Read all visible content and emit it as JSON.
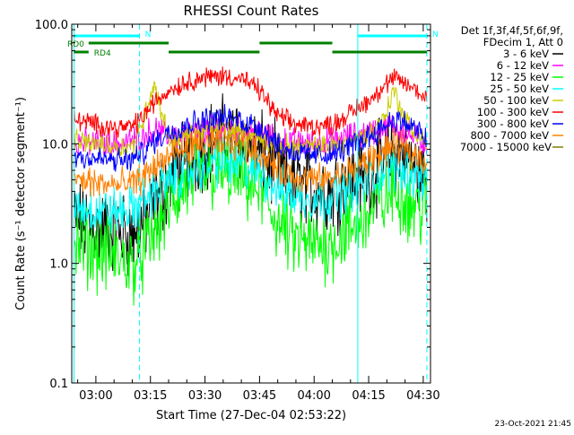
{
  "chart_data": {
    "type": "line",
    "title": "RHESSI Count Rates",
    "xlabel": "Start Time (27-Dec-04 02:53:22)",
    "ylabel": "Count Rate (s⁻¹ detector segment⁻¹)",
    "y_scale": "log",
    "ylim": [
      0.1,
      100
    ],
    "xlim": [
      "02:53:22",
      "04:32:00"
    ],
    "x_ticks": [
      "03:00",
      "03:15",
      "03:30",
      "03:45",
      "04:00",
      "04:15",
      "04:30"
    ],
    "y_ticks": [
      "0.1",
      "1.0",
      "10.0",
      "100.0"
    ],
    "grid": false,
    "legend": {
      "placement": "right",
      "header": [
        "Det 1f,3f,4f,5f,6f,9f,",
        "FDecim 1, Att 0"
      ]
    },
    "series": [
      {
        "name": "3 - 6 keV",
        "color": "#000000",
        "x": [
          "02:54",
          "03:00",
          "03:06",
          "03:10",
          "03:13",
          "03:16",
          "03:20",
          "03:25",
          "03:30",
          "03:35",
          "03:40",
          "03:45",
          "03:50",
          "03:55",
          "04:00",
          "04:05",
          "04:10",
          "04:15",
          "04:19",
          "04:22",
          "04:25",
          "04:28",
          "04:31"
        ],
        "y": [
          2.3,
          2.0,
          1.8,
          1.7,
          2.2,
          3.0,
          4.8,
          7.5,
          9.8,
          11.0,
          10.5,
          8.5,
          6.0,
          4.6,
          4.2,
          4.0,
          4.8,
          5.5,
          6.8,
          8.5,
          8.0,
          6.0,
          5.0
        ]
      },
      {
        "name": "6 - 12 keV",
        "color": "#ff00ff",
        "x": [
          "02:54",
          "03:00",
          "03:06",
          "03:10",
          "03:13",
          "03:16",
          "03:20",
          "03:25",
          "03:30",
          "03:35",
          "03:40",
          "03:45",
          "03:50",
          "03:55",
          "04:00",
          "04:05",
          "04:10",
          "04:15",
          "04:19",
          "04:22",
          "04:25",
          "04:28",
          "04:31"
        ],
        "y": [
          10.5,
          10.0,
          10.0,
          10.5,
          12.0,
          13.0,
          11.5,
          12.0,
          13.0,
          13.5,
          13.0,
          12.0,
          10.5,
          10.3,
          10.0,
          10.5,
          11.5,
          12.5,
          13.5,
          14.0,
          12.5,
          11.0,
          10.0
        ]
      },
      {
        "name": "12 - 25 keV",
        "color": "#00ff00",
        "x": [
          "02:54",
          "03:00",
          "03:06",
          "03:10",
          "03:13",
          "03:16",
          "03:20",
          "03:25",
          "03:30",
          "03:35",
          "03:40",
          "03:45",
          "03:50",
          "03:55",
          "04:00",
          "04:05",
          "04:10",
          "04:15",
          "04:19",
          "04:22",
          "04:25",
          "04:28",
          "04:31"
        ],
        "y": [
          1.5,
          1.3,
          1.1,
          1.0,
          1.2,
          1.8,
          3.0,
          4.5,
          5.5,
          5.8,
          5.2,
          4.0,
          2.2,
          1.5,
          1.4,
          1.5,
          1.9,
          2.6,
          3.4,
          4.0,
          3.6,
          3.0,
          2.9
        ]
      },
      {
        "name": "25 - 50 keV",
        "color": "#00ffff",
        "x": [
          "02:54",
          "03:00",
          "03:06",
          "03:10",
          "03:13",
          "03:16",
          "03:20",
          "03:25",
          "03:30",
          "03:35",
          "03:40",
          "03:45",
          "03:50",
          "03:55",
          "04:00",
          "04:05",
          "04:10",
          "04:15",
          "04:19",
          "04:22",
          "04:25",
          "04:28",
          "04:31"
        ],
        "y": [
          3.0,
          2.8,
          2.7,
          2.8,
          3.3,
          4.0,
          4.8,
          5.8,
          6.7,
          7.0,
          6.5,
          5.8,
          4.2,
          3.6,
          3.5,
          3.6,
          4.2,
          5.0,
          6.0,
          6.4,
          6.0,
          5.4,
          5.0
        ]
      },
      {
        "name": "50 - 100 keV",
        "color": "#cccc00",
        "x": [
          "02:54",
          "03:00",
          "03:06",
          "03:10",
          "03:13",
          "03:16",
          "03:20",
          "03:25",
          "03:30",
          "03:35",
          "03:40",
          "03:45",
          "03:50",
          "03:55",
          "04:00",
          "04:05",
          "04:10",
          "04:15",
          "04:19",
          "04:22",
          "04:25",
          "04:28",
          "04:31"
        ],
        "y": [
          10.5,
          10.0,
          9.5,
          9.5,
          16.0,
          32.0,
          11.0,
          11.5,
          13.0,
          13.5,
          12.5,
          11.0,
          9.8,
          9.5,
          9.4,
          9.6,
          10.5,
          12.0,
          16.0,
          28.0,
          16.0,
          12.0,
          10.5
        ]
      },
      {
        "name": "100 - 300 keV",
        "color": "#ff0000",
        "x": [
          "02:54",
          "03:00",
          "03:06",
          "03:10",
          "03:13",
          "03:16",
          "03:20",
          "03:25",
          "03:30",
          "03:35",
          "03:40",
          "03:45",
          "03:50",
          "03:55",
          "04:00",
          "04:05",
          "04:10",
          "04:15",
          "04:19",
          "04:22",
          "04:25",
          "04:28",
          "04:31"
        ],
        "y": [
          16.0,
          14.5,
          13.5,
          14.0,
          17.0,
          22.0,
          28.0,
          33.0,
          36.0,
          37.0,
          35.0,
          28.0,
          17.0,
          14.5,
          14.0,
          14.5,
          18.0,
          23.0,
          30.0,
          35.0,
          32.0,
          28.0,
          24.0
        ]
      },
      {
        "name": "300 - 800 keV",
        "color": "#0000ff",
        "x": [
          "02:54",
          "03:00",
          "03:06",
          "03:10",
          "03:13",
          "03:16",
          "03:20",
          "03:25",
          "03:30",
          "03:35",
          "03:40",
          "03:45",
          "03:50",
          "03:55",
          "04:00",
          "04:05",
          "04:10",
          "04:15",
          "04:19",
          "04:22",
          "04:25",
          "04:28",
          "04:31"
        ],
        "y": [
          8.0,
          7.5,
          7.2,
          7.3,
          8.5,
          10.5,
          12.5,
          14.5,
          16.0,
          16.5,
          15.5,
          14.0,
          10.0,
          8.3,
          8.0,
          8.2,
          9.5,
          11.5,
          14.0,
          16.0,
          15.0,
          13.0,
          11.0
        ]
      },
      {
        "name": "800 - 7000 keV",
        "color": "#ff8000",
        "x": [
          "02:54",
          "03:00",
          "03:06",
          "03:10",
          "03:13",
          "03:16",
          "03:20",
          "03:25",
          "03:30",
          "03:35",
          "03:40",
          "03:45",
          "03:50",
          "03:55",
          "04:00",
          "04:05",
          "04:10",
          "04:15",
          "04:19",
          "04:22",
          "04:25",
          "04:28",
          "04:31"
        ],
        "y": [
          5.0,
          4.7,
          4.5,
          4.6,
          5.3,
          6.5,
          7.8,
          9.0,
          10.0,
          10.2,
          9.6,
          8.5,
          6.2,
          5.2,
          5.0,
          5.1,
          6.0,
          7.2,
          8.5,
          9.6,
          9.0,
          8.0,
          7.2
        ]
      },
      {
        "name": "7000 - 15000 keV",
        "color": "#808000",
        "x": [],
        "y": []
      }
    ],
    "markers": [
      {
        "label": "N",
        "color": "#00ffff",
        "start": "02:54",
        "end": "03:12"
      },
      {
        "label": "N",
        "color": "#00ffff",
        "start": "04:12",
        "end": "04:31"
      },
      {
        "label": "RD0",
        "color": "#008000",
        "start": "02:58",
        "end": "03:20"
      },
      {
        "label": "RD4",
        "color": "#008000",
        "start": "02:54",
        "end": "02:58"
      },
      {
        "label": "",
        "color": "#008000",
        "start": "03:12",
        "end": "03:20"
      },
      {
        "label": "",
        "color": "#008000",
        "start": "03:20",
        "end": "03:45"
      },
      {
        "label": "",
        "color": "#008000",
        "start": "03:45",
        "end": "04:05"
      },
      {
        "label": "",
        "color": "#008000",
        "start": "04:05",
        "end": "04:31"
      }
    ],
    "vertical_lines": [
      {
        "time": "02:54",
        "color": "#00ffff",
        "style": "solid"
      },
      {
        "time": "03:12",
        "color": "#00ffff",
        "style": "dashed"
      },
      {
        "time": "04:12",
        "color": "#00ffff",
        "style": "solid"
      },
      {
        "time": "04:31",
        "color": "#00ffff",
        "style": "dashed"
      }
    ]
  },
  "footer": {
    "timestamp": "23-Oct-2021 21:45"
  }
}
